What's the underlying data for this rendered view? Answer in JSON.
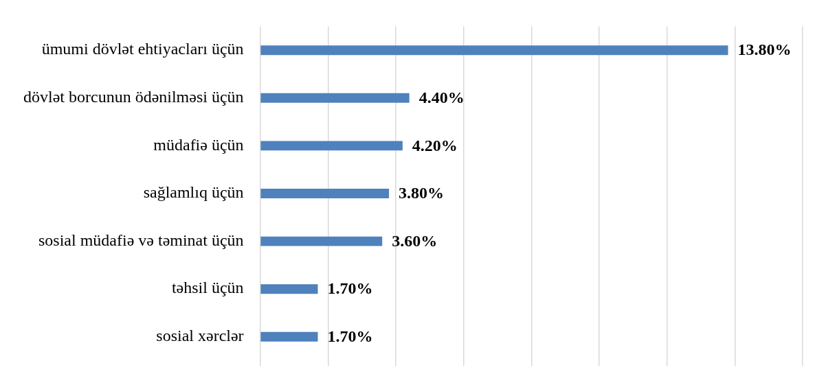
{
  "chart_data": {
    "type": "bar",
    "orientation": "horizontal",
    "categories": [
      "ümumi dövlət ehtiyacları üçün",
      "dövlət borcunun ödənilməsi üçün",
      "müdafiə üçün",
      "sağlamlıq üçün",
      "sosial müdafiə və təminat üçün",
      "təhsil üçün",
      "sosial xərclər"
    ],
    "values": [
      13.8,
      4.4,
      4.2,
      3.8,
      3.6,
      1.7,
      1.7
    ],
    "value_labels": [
      "13.80%",
      "4.40%",
      "4.20%",
      "3.80%",
      "3.60%",
      "1.70%",
      "1.70%"
    ],
    "color": "#4f81bd",
    "xlim": [
      0,
      16
    ],
    "xticks": [
      {
        "value": 0,
        "label": null
      },
      {
        "value": 2,
        "label": null
      },
      {
        "value": 4,
        "label": null
      },
      {
        "value": 6,
        "label": null
      },
      {
        "value": 8,
        "label": null
      },
      {
        "value": 10,
        "label": null
      },
      {
        "value": 12,
        "label": null
      },
      {
        "value": 14,
        "label": null
      },
      {
        "value": 16,
        "label": null
      }
    ],
    "grid": "x",
    "tick_labels": "y",
    "legend": false
  }
}
